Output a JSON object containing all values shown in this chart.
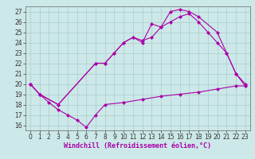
{
  "xlabel": "Windchill (Refroidissement éolien,°C)",
  "bg_color": "#cce8e8",
  "grid_color": "#aacccc",
  "line_color": "#aa00aa",
  "xlim": [
    -0.5,
    23.5
  ],
  "ylim": [
    15.5,
    27.5
  ],
  "yticks": [
    16,
    17,
    18,
    19,
    20,
    21,
    22,
    23,
    24,
    25,
    26,
    27
  ],
  "xticks": [
    0,
    1,
    2,
    3,
    4,
    5,
    6,
    7,
    8,
    9,
    10,
    11,
    12,
    13,
    14,
    15,
    16,
    17,
    18,
    19,
    20,
    21,
    22,
    23
  ],
  "line1_x": [
    0,
    1,
    3,
    7,
    8,
    9,
    10,
    11,
    12,
    13,
    14,
    15,
    16,
    17,
    18,
    20,
    21,
    22,
    23
  ],
  "line1_y": [
    20,
    19,
    18,
    22,
    22,
    23,
    24,
    24.5,
    24,
    25.8,
    25.5,
    27.0,
    27.2,
    27.0,
    26.5,
    25,
    23,
    21,
    19.8
  ],
  "line2_x": [
    0,
    1,
    3,
    7,
    8,
    9,
    10,
    11,
    12,
    13,
    14,
    15,
    16,
    17,
    18,
    19,
    20,
    21,
    22,
    23
  ],
  "line2_y": [
    20,
    19,
    18,
    22,
    22,
    23,
    24,
    24.5,
    24.2,
    24.5,
    25.5,
    26.0,
    26.5,
    26.8,
    26.0,
    25.0,
    24.0,
    23.0,
    21,
    20
  ],
  "line3_x": [
    0,
    1,
    2,
    3,
    4,
    5,
    6,
    7,
    8,
    10,
    12,
    14,
    16,
    18,
    20,
    22,
    23
  ],
  "line3_y": [
    20,
    19,
    18.2,
    17.5,
    17.0,
    16.5,
    15.8,
    17.0,
    18,
    18.2,
    18.5,
    18.8,
    19.0,
    19.2,
    19.5,
    19.8,
    19.8
  ],
  "marker_size": 2.5,
  "line_width": 0.8,
  "font_size_label": 6,
  "font_size_tick": 5.5
}
